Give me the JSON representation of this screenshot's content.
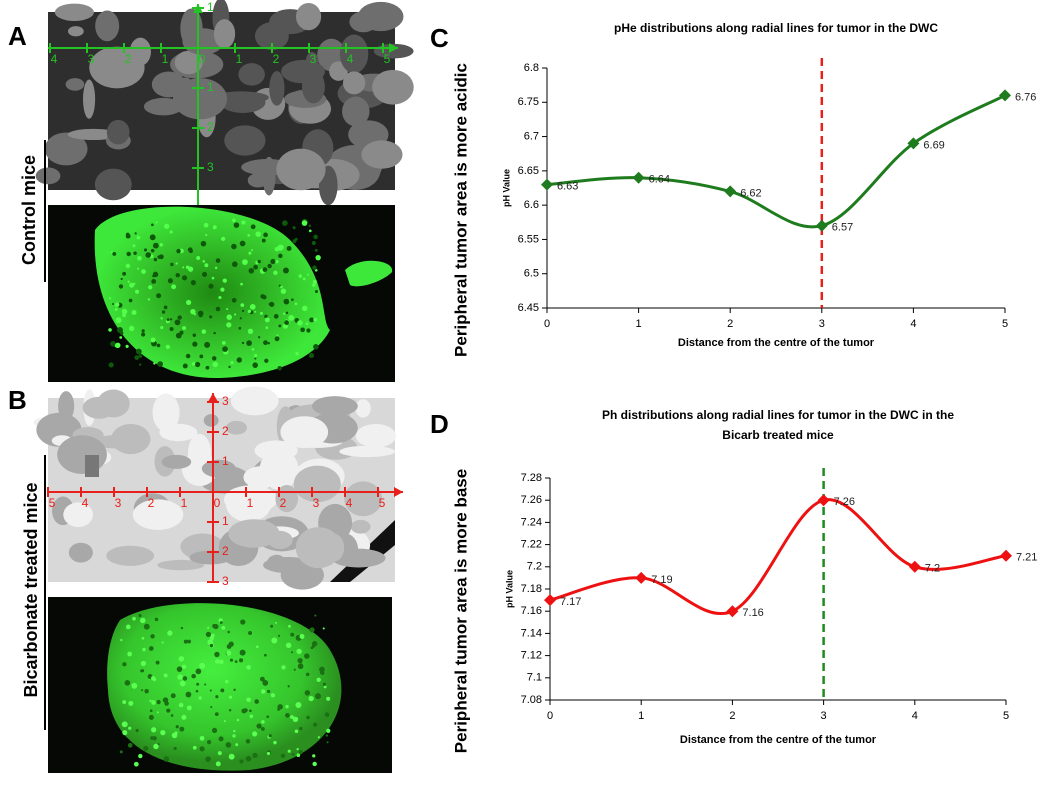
{
  "panel_labels": [
    "A",
    "B",
    "C",
    "D"
  ],
  "images": [
    {
      "group_label": "Control mice",
      "axis_color": "#22c322",
      "x_tick_labels": [
        "4",
        "3",
        "2",
        "1",
        "0",
        "1",
        "2",
        "3",
        "4",
        "5"
      ],
      "y_tick_labels_up": [
        "1"
      ],
      "y_tick_labels_down": [
        "1",
        "2",
        "3"
      ]
    },
    {
      "group_label": "Bicarbonate treated mice",
      "axis_color": "#e8201c",
      "x_tick_labels": [
        "5",
        "4",
        "3",
        "2",
        "1",
        "0",
        "1",
        "2",
        "3",
        "4",
        "5"
      ],
      "y_tick_labels_up": [
        "3",
        "2",
        "1"
      ],
      "y_tick_labels_down": [
        "1",
        "2",
        "3"
      ]
    }
  ],
  "chart_data": [
    {
      "type": "line",
      "title": "pHe distributions along radial lines for tumor in the DWC",
      "side_label": "Peripheral tumor area is more acidic",
      "x_label": "Distance from the centre of the tumor",
      "y_label": "pH Value",
      "x": [
        0,
        1,
        2,
        3,
        4,
        5
      ],
      "values": [
        6.63,
        6.64,
        6.62,
        6.57,
        6.69,
        6.76
      ],
      "color": "#1e7b1e",
      "xlim": [
        0,
        5
      ],
      "xticks": [
        0,
        1,
        2,
        3,
        4,
        5
      ],
      "ylim": [
        6.45,
        6.8
      ],
      "yticks": [
        6.45,
        6.5,
        6.55,
        6.6,
        6.65,
        6.7,
        6.75,
        6.8
      ],
      "vline": 3,
      "vline_color": "#e8201c"
    },
    {
      "type": "line",
      "title": "Ph distributions along radial lines for tumor in the DWC in the Bicarb treated mice",
      "side_label": "Peripheral tumor area is more base",
      "x_label": "Distance from the centre of the tumor",
      "y_label": "pH Value",
      "x": [
        0,
        1,
        2,
        3,
        4,
        5
      ],
      "values": [
        7.17,
        7.19,
        7.16,
        7.26,
        7.2,
        7.21
      ],
      "color": "#ee1111",
      "xlim": [
        0,
        5
      ],
      "xticks": [
        0,
        1,
        2,
        3,
        4,
        5
      ],
      "ylim": [
        7.08,
        7.28
      ],
      "yticks": [
        7.08,
        7.1,
        7.12,
        7.14,
        7.16,
        7.18,
        7.2,
        7.22,
        7.24,
        7.26,
        7.28
      ],
      "vline": 3,
      "vline_color": "#1e8b1e"
    }
  ]
}
